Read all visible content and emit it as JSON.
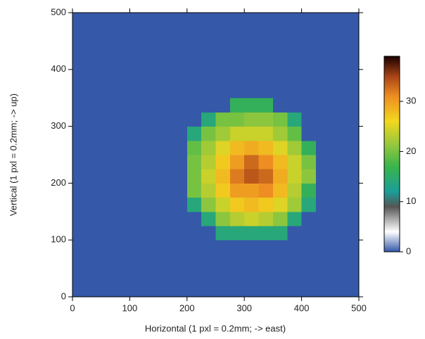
{
  "chart_data": {
    "type": "heatmap",
    "xlabel": "Horizontal (1 pxl = 0.2mm; -> east)",
    "ylabel": "Vertical (1 pxl = 0.2mm; -> up)",
    "xlim": [
      0,
      500
    ],
    "xticks": [
      0,
      100,
      200,
      300,
      400,
      500
    ],
    "ylim": [
      0,
      500
    ],
    "yticks": [
      0,
      100,
      200,
      300,
      400,
      500
    ],
    "zlim": [
      0,
      39
    ],
    "zticks": [
      0,
      10,
      20,
      30
    ],
    "colormap": [
      {
        "value": 0,
        "color": "#3558a8"
      },
      {
        "value": 4,
        "color": "#ffffff"
      },
      {
        "value": 9,
        "color": "#555555"
      },
      {
        "value": 12,
        "color": "#1b9e9a"
      },
      {
        "value": 17,
        "color": "#3ab54a"
      },
      {
        "value": 21,
        "color": "#8cc63f"
      },
      {
        "value": 26,
        "color": "#f2d81e"
      },
      {
        "value": 31,
        "color": "#ee8e22"
      },
      {
        "value": 35,
        "color": "#a84416"
      },
      {
        "value": 39,
        "color": "#1a0000"
      }
    ],
    "z": [
      [
        0,
        0,
        0,
        0,
        0,
        0,
        0,
        0,
        0,
        0,
        0,
        0,
        0,
        0,
        0,
        0,
        0,
        0,
        0,
        0
      ],
      [
        0,
        0,
        0,
        0,
        0,
        0,
        0,
        0,
        0,
        0,
        0,
        0,
        0,
        0,
        0,
        0,
        0,
        0,
        0,
        0
      ],
      [
        0,
        0,
        0,
        0,
        0,
        0,
        0,
        0,
        0,
        0,
        0,
        0,
        0,
        0,
        0,
        0,
        0,
        0,
        0,
        0
      ],
      [
        0,
        0,
        0,
        0,
        0,
        0,
        0,
        0,
        0,
        0,
        0,
        0,
        0,
        0,
        0,
        0,
        0,
        0,
        0,
        0
      ],
      [
        0,
        0,
        0,
        0,
        0,
        0,
        0,
        0,
        0,
        0,
        14,
        14,
        14,
        14,
        14,
        0,
        0,
        0,
        0,
        0
      ],
      [
        0,
        0,
        0,
        0,
        0,
        0,
        0,
        0,
        0,
        14,
        21,
        23,
        24,
        23,
        21,
        14,
        0,
        0,
        0,
        0
      ],
      [
        0,
        0,
        0,
        0,
        0,
        0,
        0,
        0,
        14,
        21,
        24,
        27,
        28,
        27,
        25,
        22,
        14,
        0,
        0,
        0
      ],
      [
        0,
        0,
        0,
        0,
        0,
        0,
        0,
        0,
        20,
        23,
        27,
        30,
        30,
        31,
        28,
        23,
        16,
        0,
        0,
        0
      ],
      [
        0,
        0,
        0,
        0,
        0,
        0,
        0,
        0,
        20,
        24,
        28,
        32,
        34,
        33,
        29,
        24,
        21,
        0,
        0,
        0
      ],
      [
        0,
        0,
        0,
        0,
        0,
        0,
        0,
        0,
        20,
        23,
        27,
        30,
        33,
        31,
        28,
        24,
        20,
        0,
        0,
        0
      ],
      [
        0,
        0,
        0,
        0,
        0,
        0,
        0,
        0,
        19,
        22,
        25,
        28,
        29,
        28,
        25,
        22,
        16,
        0,
        0,
        0
      ],
      [
        0,
        0,
        0,
        0,
        0,
        0,
        0,
        0,
        14,
        20,
        22,
        24,
        24,
        24,
        22,
        19,
        0,
        0,
        0,
        0
      ],
      [
        0,
        0,
        0,
        0,
        0,
        0,
        0,
        0,
        0,
        14,
        20,
        20,
        21,
        21,
        20,
        14,
        0,
        0,
        0,
        0
      ],
      [
        0,
        0,
        0,
        0,
        0,
        0,
        0,
        0,
        0,
        0,
        0,
        16,
        16,
        16,
        0,
        0,
        0,
        0,
        0,
        0
      ],
      [
        0,
        0,
        0,
        0,
        0,
        0,
        0,
        0,
        0,
        0,
        0,
        0,
        0,
        0,
        0,
        0,
        0,
        0,
        0,
        0
      ],
      [
        0,
        0,
        0,
        0,
        0,
        0,
        0,
        0,
        0,
        0,
        0,
        0,
        0,
        0,
        0,
        0,
        0,
        0,
        0,
        0
      ],
      [
        0,
        0,
        0,
        0,
        0,
        0,
        0,
        0,
        0,
        0,
        0,
        0,
        0,
        0,
        0,
        0,
        0,
        0,
        0,
        0
      ],
      [
        0,
        0,
        0,
        0,
        0,
        0,
        0,
        0,
        0,
        0,
        0,
        0,
        0,
        0,
        0,
        0,
        0,
        0,
        0,
        0
      ],
      [
        0,
        0,
        0,
        0,
        0,
        0,
        0,
        0,
        0,
        0,
        0,
        0,
        0,
        0,
        0,
        0,
        0,
        0,
        0,
        0
      ],
      [
        0,
        0,
        0,
        0,
        0,
        0,
        0,
        0,
        0,
        0,
        0,
        0,
        0,
        0,
        0,
        0,
        0,
        0,
        0,
        0
      ]
    ]
  }
}
